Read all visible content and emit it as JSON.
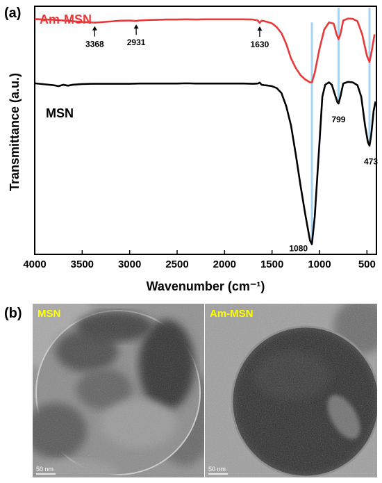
{
  "panel_a_label": "(a)",
  "panel_b_label": "(b)",
  "chart_data": {
    "type": "line",
    "title": "",
    "xlabel": "Wavenumber (cm⁻¹)",
    "ylabel": "Transmittance (a.u.)",
    "xlim": [
      4000,
      400
    ],
    "x_reversed": true,
    "x_ticks": [
      4000,
      3500,
      3000,
      2500,
      2000,
      1500,
      1000,
      500
    ],
    "ylim": [
      0,
      1
    ],
    "y_ticks_shown": false,
    "grid": false,
    "series": [
      {
        "name": "Am-MSN",
        "color": "#e8393a",
        "label_color": "#e8393a",
        "points": [
          [
            4000,
            0.964
          ],
          [
            3900,
            0.962
          ],
          [
            3800,
            0.961
          ],
          [
            3700,
            0.958
          ],
          [
            3600,
            0.955
          ],
          [
            3500,
            0.952
          ],
          [
            3400,
            0.95
          ],
          [
            3368,
            0.949
          ],
          [
            3300,
            0.951
          ],
          [
            3200,
            0.954
          ],
          [
            3100,
            0.957
          ],
          [
            3000,
            0.958
          ],
          [
            2931,
            0.956
          ],
          [
            2900,
            0.958
          ],
          [
            2800,
            0.96
          ],
          [
            2700,
            0.961
          ],
          [
            2600,
            0.962
          ],
          [
            2500,
            0.962
          ],
          [
            2400,
            0.963
          ],
          [
            2300,
            0.962
          ],
          [
            2200,
            0.963
          ],
          [
            2100,
            0.963
          ],
          [
            2000,
            0.963
          ],
          [
            1900,
            0.963
          ],
          [
            1800,
            0.963
          ],
          [
            1700,
            0.962
          ],
          [
            1650,
            0.958
          ],
          [
            1630,
            0.948
          ],
          [
            1610,
            0.957
          ],
          [
            1580,
            0.955
          ],
          [
            1550,
            0.952
          ],
          [
            1500,
            0.946
          ],
          [
            1450,
            0.93
          ],
          [
            1400,
            0.905
          ],
          [
            1350,
            0.86
          ],
          [
            1300,
            0.8
          ],
          [
            1250,
            0.76
          ],
          [
            1200,
            0.73
          ],
          [
            1150,
            0.712
          ],
          [
            1100,
            0.7
          ],
          [
            1080,
            0.7
          ],
          [
            1050,
            0.74
          ],
          [
            1000,
            0.84
          ],
          [
            950,
            0.92
          ],
          [
            900,
            0.95
          ],
          [
            850,
            0.945
          ],
          [
            820,
            0.9
          ],
          [
            799,
            0.88
          ],
          [
            780,
            0.9
          ],
          [
            750,
            0.958
          ],
          [
            700,
            0.966
          ],
          [
            650,
            0.965
          ],
          [
            600,
            0.955
          ],
          [
            550,
            0.9
          ],
          [
            500,
            0.81
          ],
          [
            473,
            0.785
          ],
          [
            450,
            0.83
          ],
          [
            420,
            0.9
          ]
        ]
      },
      {
        "name": "MSN",
        "color": "#000000",
        "label_color": "#000000",
        "points": [
          [
            4000,
            0.696
          ],
          [
            3900,
            0.692
          ],
          [
            3800,
            0.688
          ],
          [
            3750,
            0.684
          ],
          [
            3700,
            0.69
          ],
          [
            3650,
            0.686
          ],
          [
            3600,
            0.69
          ],
          [
            3500,
            0.693
          ],
          [
            3400,
            0.694
          ],
          [
            3300,
            0.694
          ],
          [
            3200,
            0.694
          ],
          [
            3100,
            0.694
          ],
          [
            3000,
            0.694
          ],
          [
            2900,
            0.695
          ],
          [
            2800,
            0.695
          ],
          [
            2700,
            0.695
          ],
          [
            2600,
            0.695
          ],
          [
            2500,
            0.695
          ],
          [
            2400,
            0.696
          ],
          [
            2300,
            0.695
          ],
          [
            2200,
            0.695
          ],
          [
            2100,
            0.695
          ],
          [
            2000,
            0.695
          ],
          [
            1900,
            0.695
          ],
          [
            1800,
            0.695
          ],
          [
            1700,
            0.694
          ],
          [
            1650,
            0.695
          ],
          [
            1630,
            0.699
          ],
          [
            1610,
            0.69
          ],
          [
            1580,
            0.688
          ],
          [
            1550,
            0.687
          ],
          [
            1500,
            0.684
          ],
          [
            1450,
            0.676
          ],
          [
            1400,
            0.655
          ],
          [
            1350,
            0.6
          ],
          [
            1300,
            0.52
          ],
          [
            1250,
            0.4
          ],
          [
            1200,
            0.27
          ],
          [
            1150,
            0.15
          ],
          [
            1100,
            0.04
          ],
          [
            1080,
            0.025
          ],
          [
            1050,
            0.14
          ],
          [
            1000,
            0.45
          ],
          [
            970,
            0.64
          ],
          [
            940,
            0.69
          ],
          [
            900,
            0.7
          ],
          [
            870,
            0.69
          ],
          [
            830,
            0.64
          ],
          [
            810,
            0.616
          ],
          [
            799,
            0.612
          ],
          [
            780,
            0.64
          ],
          [
            750,
            0.695
          ],
          [
            700,
            0.702
          ],
          [
            650,
            0.7
          ],
          [
            600,
            0.688
          ],
          [
            560,
            0.64
          ],
          [
            520,
            0.52
          ],
          [
            490,
            0.45
          ],
          [
            473,
            0.436
          ],
          [
            455,
            0.48
          ],
          [
            430,
            0.58
          ],
          [
            410,
            0.62
          ]
        ]
      }
    ],
    "annotations": [
      {
        "label": "3368",
        "x": 3368,
        "series": "Am-MSN",
        "style": "arrow-up"
      },
      {
        "label": "2931",
        "x": 2931,
        "series": "Am-MSN",
        "style": "arrow-up"
      },
      {
        "label": "1630",
        "x": 1630,
        "series": "Am-MSN",
        "style": "arrow-up"
      },
      {
        "label": "1080",
        "x": 1080,
        "series": "MSN",
        "style": "guide-line"
      },
      {
        "label": "799",
        "x": 799,
        "series": "MSN",
        "style": "guide-line"
      },
      {
        "label": "473",
        "x": 473,
        "series": "MSN",
        "style": "guide-line"
      }
    ],
    "guide_line_color": "#a8d4f0"
  },
  "tem_images": [
    {
      "label": "MSN",
      "label_color": "#ffff00",
      "scale_bar": "50 nm"
    },
    {
      "label": "Am-MSN",
      "label_color": "#ffff00",
      "scale_bar": "50 nm"
    }
  ]
}
